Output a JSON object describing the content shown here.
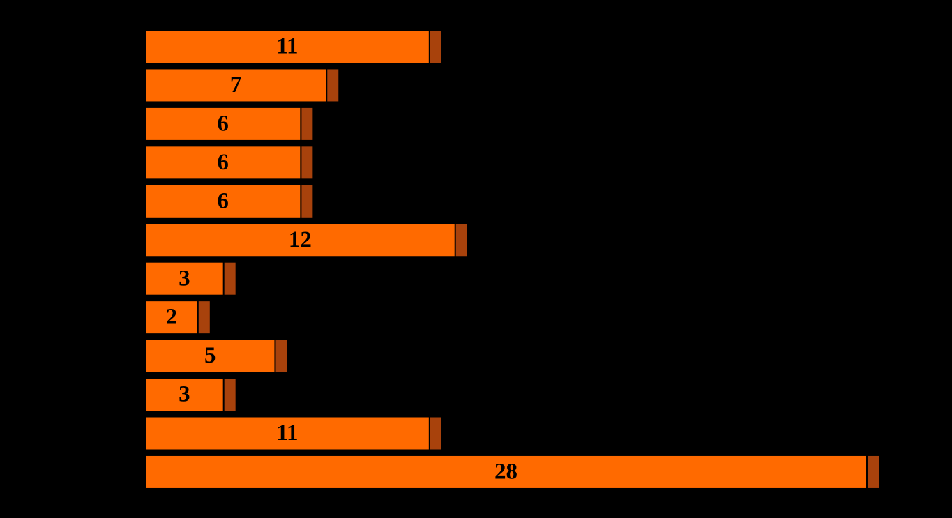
{
  "chart_data": {
    "type": "bar",
    "orientation": "horizontal",
    "categories": [
      null,
      null,
      null,
      null,
      null,
      null,
      null,
      null,
      null,
      null,
      null,
      null
    ],
    "values": [
      11,
      7,
      6,
      6,
      6,
      12,
      3,
      2,
      5,
      3,
      11,
      28
    ],
    "color": "#ff6a00",
    "xlim": [
      0,
      28
    ]
  }
}
